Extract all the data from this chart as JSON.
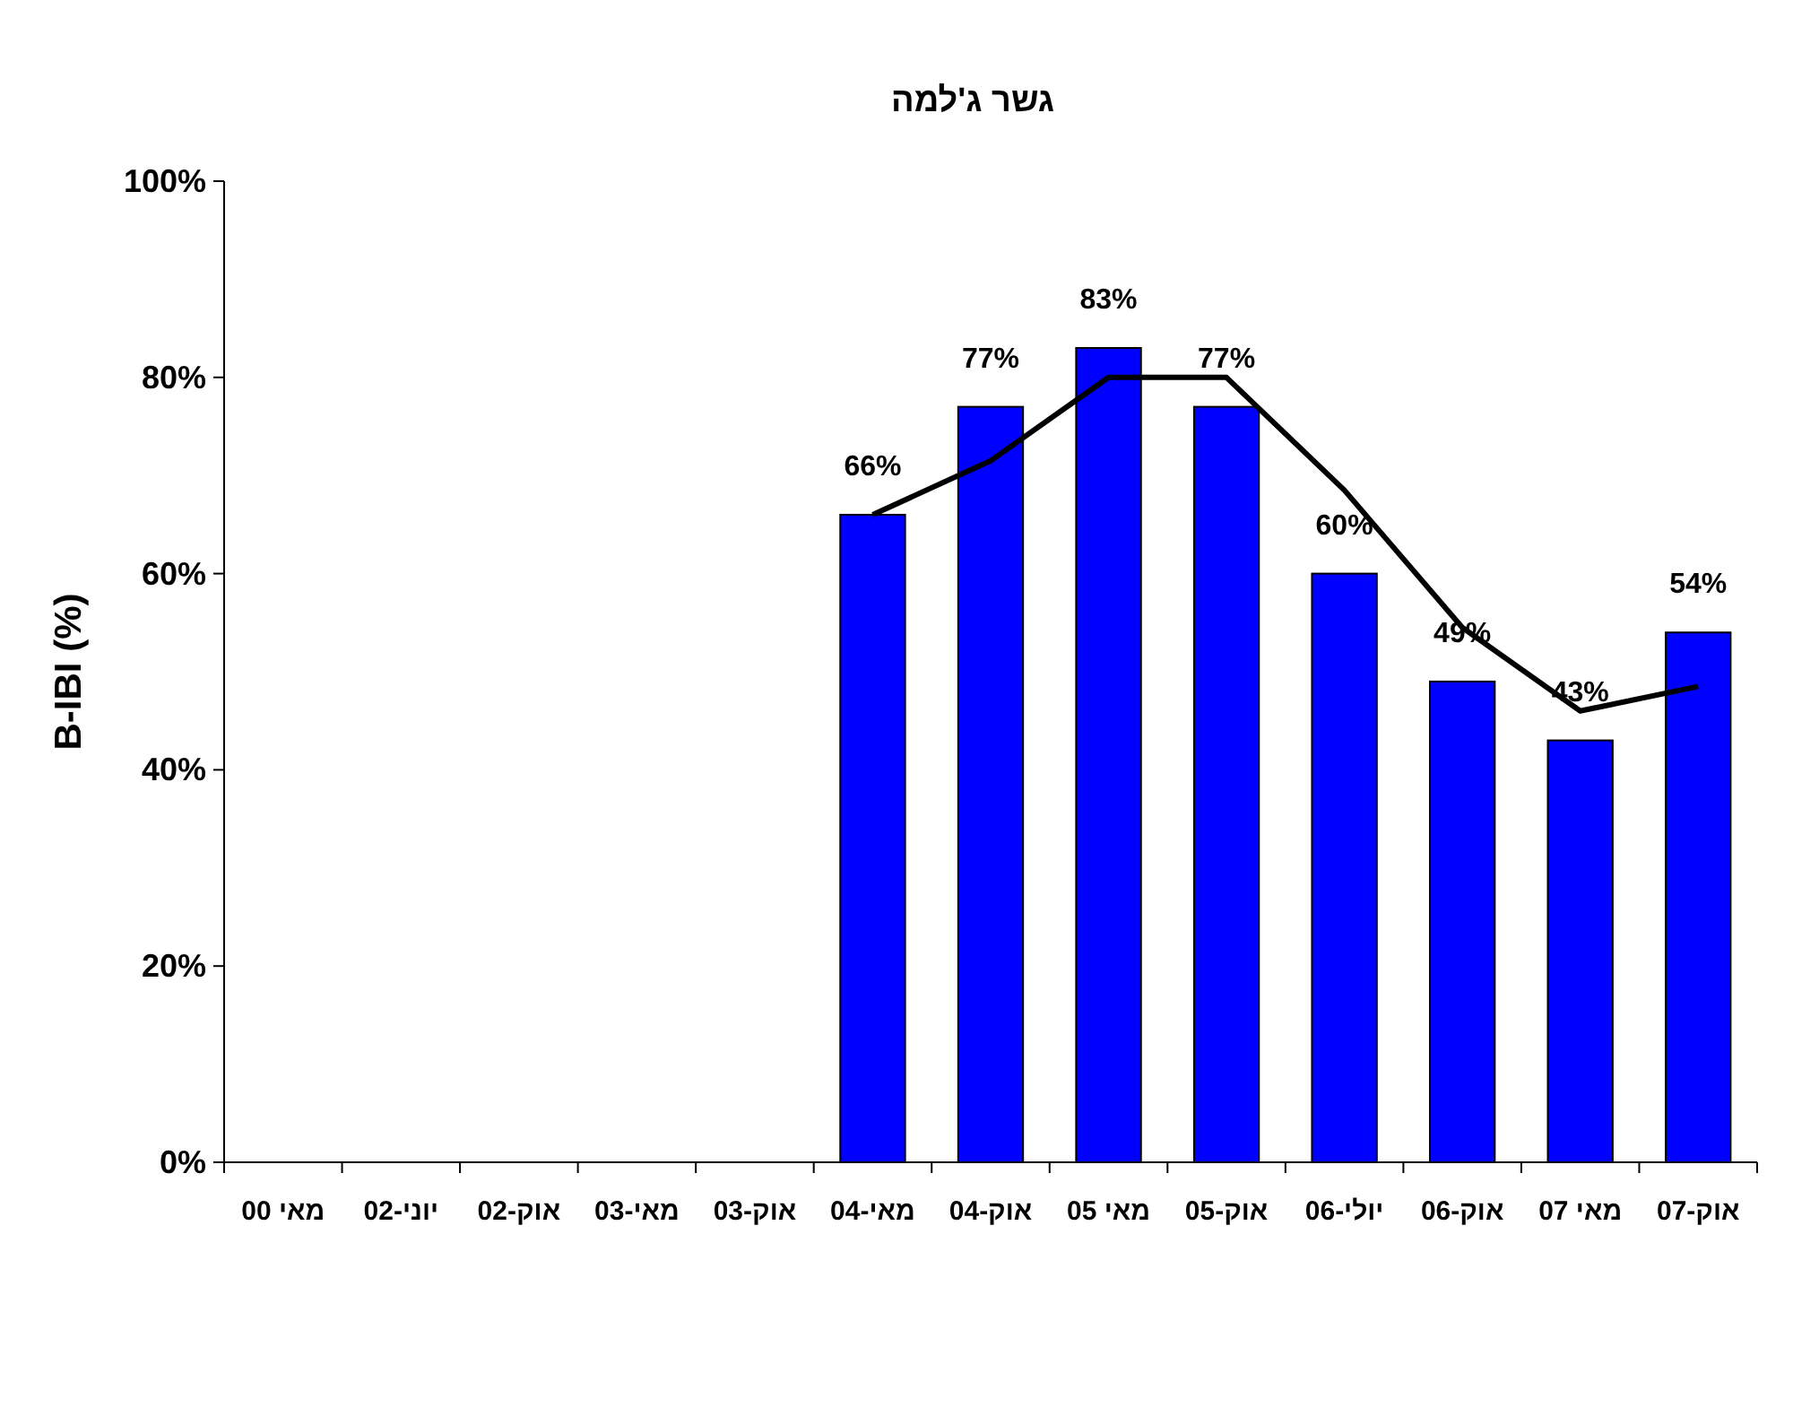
{
  "chart_data": {
    "type": "bar",
    "title": "גשר ג'למה",
    "ylabel": "B-IBI (%)",
    "categories": [
      "מאי 00",
      "יוני-02",
      "אוק-02",
      "מאי-03",
      "אוק-03",
      "מאי-04",
      "אוק-04",
      "מאי 05",
      "אוק-05",
      "יולי-06",
      "אוק-06",
      "מאי 07",
      "אוק-07"
    ],
    "series": [
      {
        "color": "#0000ff",
        "values": [
          null,
          null,
          null,
          null,
          null,
          66,
          77,
          83,
          77,
          60,
          49,
          43,
          54
        ],
        "value_labels": [
          null,
          null,
          null,
          null,
          null,
          "66%",
          "77%",
          "83%",
          "77%",
          "60%",
          "49%",
          "43%",
          "54%"
        ]
      },
      {
        "type": "line",
        "color": "#000000",
        "values": [
          null,
          null,
          null,
          null,
          null,
          66,
          71.5,
          80,
          80,
          68.5,
          54.5,
          46,
          48.5
        ]
      }
    ],
    "ylim": [
      0,
      100
    ],
    "yticks": [
      {
        "value": 0,
        "label": "0%"
      },
      {
        "value": 20,
        "label": "20%"
      },
      {
        "value": 40,
        "label": "40%"
      },
      {
        "value": 60,
        "label": "60%"
      },
      {
        "value": 80,
        "label": "80%"
      },
      {
        "value": 100,
        "label": "100%"
      }
    ],
    "grid": false
  }
}
